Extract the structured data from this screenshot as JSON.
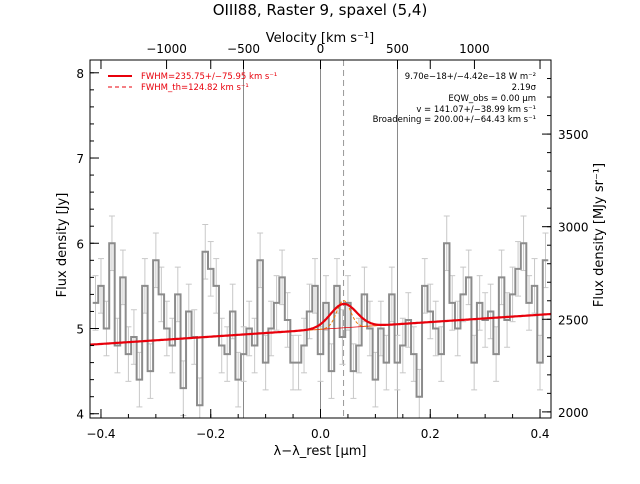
{
  "chart_data": {
    "type": "line",
    "title": "OIII88, Raster 9, spaxel (5,4)",
    "xlabel": "λ−λ_rest [μm]",
    "ylabel_left": "Flux density [Jy]",
    "ylabel_right": "Flux density [MJy sr⁻¹]",
    "top_axis_label": "Velocity [km s⁻¹]",
    "xlim": [
      -0.42,
      0.42
    ],
    "ylim": [
      3.95,
      8.15
    ],
    "right_ylim": [
      1967,
      3900
    ],
    "x_ticks": [
      -0.4,
      -0.2,
      0.0,
      0.2,
      0.4
    ],
    "x_tick_labels": [
      "−0.4",
      "−0.2",
      "0.0",
      "0.2",
      "0.4"
    ],
    "y_ticks": [
      4,
      5,
      6,
      7,
      8
    ],
    "y_tick_labels": [
      "4",
      "5",
      "6",
      "7",
      "8"
    ],
    "right_ticks": [
      2000,
      2500,
      3000,
      3500
    ],
    "right_tick_labels": [
      "2000",
      "2500",
      "3000",
      "3500"
    ],
    "top_ticks_x": [
      -0.2805,
      -0.1403,
      0.0,
      0.1403,
      0.2805
    ],
    "top_tick_labels": [
      "−1000",
      "−500",
      "0",
      "500",
      "1000"
    ],
    "vertical_lines_x": [
      -0.1403,
      0.0,
      0.1403
    ],
    "line_center_x": 0.042,
    "legend": [
      {
        "label": "FWHM=235.75+/−75.95 km s⁻¹",
        "style": "solid",
        "color": "#e8000b"
      },
      {
        "label": "FWHM_th=124.82 km s⁻¹",
        "style": "dashed",
        "color": "#e8000b"
      }
    ],
    "annotations": [
      "9.70e−18+/−4.42e−18 W m⁻²",
      "2.19σ",
      "EQW_obs = 0.00 μm",
      "v = 141.07+/−38.99 km s⁻¹",
      "Broadening = 200.00+/−64.43 km s⁻¹"
    ],
    "continuum": {
      "x": [
        -0.42,
        0.42
      ],
      "y": [
        4.81,
        5.17
      ]
    },
    "gaussian": {
      "center": 0.042,
      "amplitude": 0.28,
      "sigma": 0.024
    },
    "gaussian_thermal": {
      "center": 0.042,
      "amplitude": 0.32,
      "sigma": 0.0125
    },
    "spectrum": {
      "x": [
        -0.41,
        -0.4,
        -0.39,
        -0.38,
        -0.37,
        -0.36,
        -0.35,
        -0.34,
        -0.33,
        -0.32,
        -0.31,
        -0.3,
        -0.29,
        -0.28,
        -0.27,
        -0.26,
        -0.25,
        -0.24,
        -0.23,
        -0.22,
        -0.21,
        -0.2,
        -0.19,
        -0.18,
        -0.17,
        -0.16,
        -0.15,
        -0.14,
        -0.13,
        -0.12,
        -0.11,
        -0.1,
        -0.09,
        -0.08,
        -0.07,
        -0.06,
        -0.05,
        -0.04,
        -0.03,
        -0.02,
        -0.01,
        0.0,
        0.01,
        0.02,
        0.03,
        0.04,
        0.05,
        0.06,
        0.07,
        0.08,
        0.09,
        0.1,
        0.11,
        0.12,
        0.13,
        0.14,
        0.15,
        0.16,
        0.17,
        0.18,
        0.19,
        0.2,
        0.21,
        0.22,
        0.23,
        0.24,
        0.25,
        0.26,
        0.27,
        0.28,
        0.29,
        0.3,
        0.31,
        0.32,
        0.33,
        0.34,
        0.35,
        0.36,
        0.37,
        0.38,
        0.39,
        0.4,
        0.41
      ],
      "y": [
        5.3,
        5.5,
        5.0,
        6.0,
        4.8,
        5.6,
        4.7,
        4.9,
        4.4,
        5.5,
        4.5,
        5.8,
        5.4,
        5.0,
        4.8,
        5.4,
        4.3,
        5.2,
        4.9,
        4.1,
        5.9,
        5.7,
        5.5,
        4.8,
        4.7,
        5.2,
        4.4,
        4.7,
        5.0,
        4.8,
        5.8,
        4.6,
        5.0,
        5.3,
        5.6,
        5.1,
        4.6,
        4.6,
        4.8,
        5.2,
        5.5,
        4.7,
        5.3,
        4.5,
        5.5,
        4.9,
        5.3,
        4.5,
        4.8,
        5.4,
        5.0,
        4.4,
        5.0,
        4.6,
        5.4,
        4.6,
        4.8,
        5.1,
        4.7,
        4.2,
        5.5,
        5.2,
        5.0,
        4.7,
        6.0,
        5.3,
        5.0,
        5.4,
        5.6,
        4.6,
        5.3,
        5.1,
        5.2,
        4.7,
        5.6,
        5.1,
        5.4,
        5.7,
        6.0,
        5.3,
        5.5,
        4.6,
        5.8
      ],
      "err": 0.32
    }
  }
}
